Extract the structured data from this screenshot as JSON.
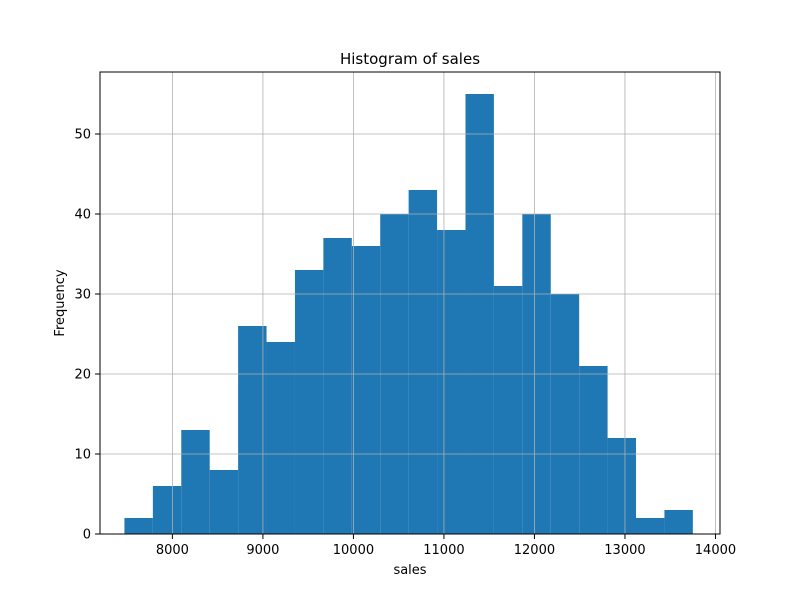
{
  "chart_data": {
    "type": "bar",
    "title": "Histogram of sales",
    "xlabel": "sales",
    "ylabel": "Frequency",
    "xlim": [
      7200,
      14050
    ],
    "ylim": [
      0,
      57.75
    ],
    "grid": true,
    "color": "#1f77b4",
    "bin_edges": [
      7470,
      7784,
      8098,
      8412,
      8726,
      9040,
      9354,
      9668,
      9982,
      10296,
      10610,
      10924,
      11238,
      11552,
      11866,
      12180,
      12494,
      12808,
      13122,
      13436,
      13750
    ],
    "values": [
      2,
      6,
      13,
      8,
      26,
      24,
      33,
      37,
      36,
      40,
      43,
      38,
      55,
      31,
      40,
      30,
      21,
      12,
      2,
      3
    ],
    "x_ticks": [
      8000,
      9000,
      10000,
      11000,
      12000,
      13000,
      14000
    ],
    "y_ticks": [
      0,
      10,
      20,
      30,
      40,
      50
    ]
  }
}
